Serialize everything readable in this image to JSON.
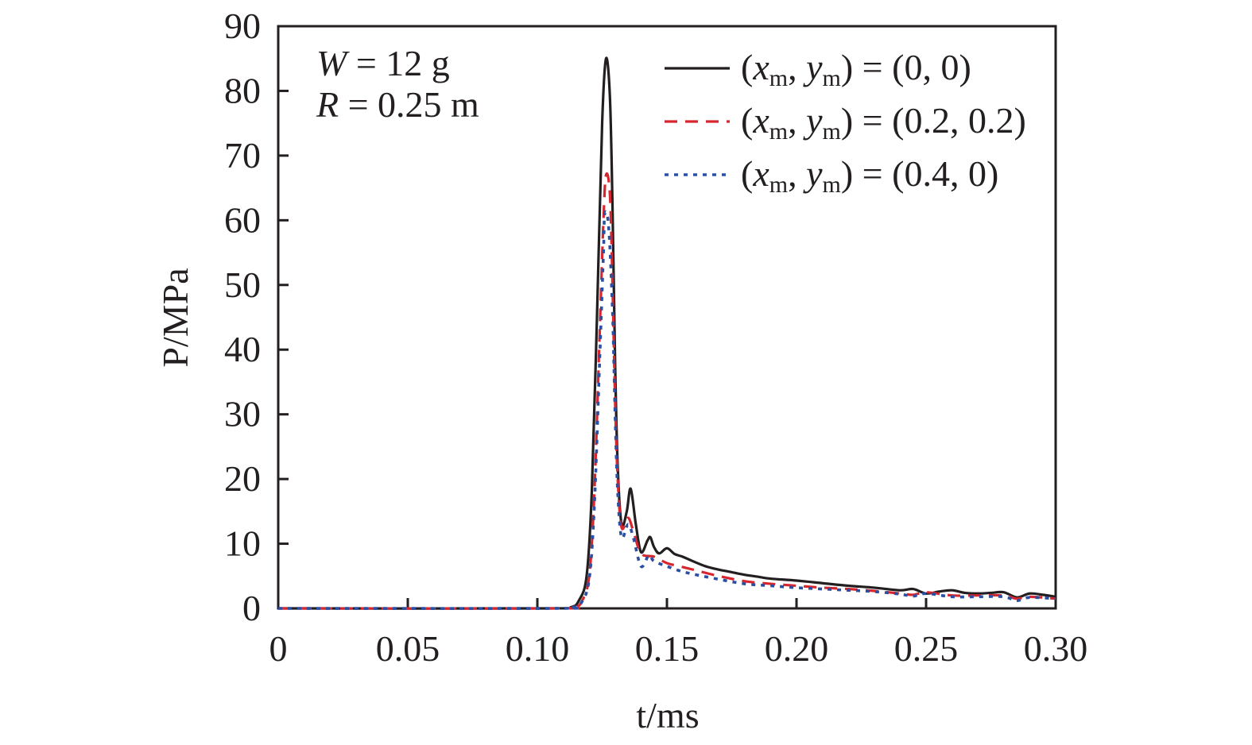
{
  "chart_data": {
    "type": "line",
    "title": "",
    "xlabel": "t/ms",
    "ylabel": "P/MPa",
    "xlim": [
      0,
      0.3
    ],
    "ylim": [
      0,
      90
    ],
    "xticks": [
      "0",
      "0.05",
      "0.10",
      "0.15",
      "0.20",
      "0.25",
      "0.30"
    ],
    "xtick_values": [
      0,
      0.05,
      0.1,
      0.15,
      0.2,
      0.25,
      0.3
    ],
    "yticks": [
      "0",
      "10",
      "20",
      "30",
      "40",
      "50",
      "60",
      "70",
      "80",
      "90"
    ],
    "ytick_values": [
      0,
      10,
      20,
      30,
      40,
      50,
      60,
      70,
      80,
      90
    ],
    "grid": false,
    "legend_placement": "top-right",
    "annotations": [
      "W = 12 g",
      "R = 0.25 m"
    ],
    "series": [
      {
        "name": "(xm, ym) = (0, 0)",
        "color": "#231f20",
        "style": "solid",
        "x": [
          0,
          0.105,
          0.113,
          0.116,
          0.119,
          0.121,
          0.123,
          0.125,
          0.1265,
          0.128,
          0.129,
          0.13,
          0.131,
          0.1325,
          0.1345,
          0.136,
          0.138,
          0.14,
          0.1425,
          0.1436,
          0.145,
          0.147,
          0.15,
          0.153,
          0.156,
          0.16,
          0.165,
          0.17,
          0.175,
          0.18,
          0.185,
          0.19,
          0.2,
          0.21,
          0.22,
          0.23,
          0.24,
          0.245,
          0.25,
          0.255,
          0.26,
          0.265,
          0.27,
          0.275,
          0.28,
          0.285,
          0.29,
          0.295,
          0.3
        ],
        "y": [
          0,
          0,
          0.2,
          1.2,
          5,
          18,
          45,
          75,
          85,
          79,
          62,
          38,
          22,
          13,
          15,
          18.5,
          13,
          8.7,
          10.5,
          11,
          9.5,
          8.5,
          9.3,
          8.4,
          8.0,
          7.3,
          6.5,
          6.0,
          5.6,
          5.2,
          4.9,
          4.6,
          4.3,
          3.9,
          3.5,
          3.2,
          2.8,
          3.0,
          2.3,
          2.6,
          2.8,
          2.4,
          2.3,
          2.4,
          2.5,
          1.7,
          2.3,
          2.1,
          1.8
        ]
      },
      {
        "name": "(xm, ym) = (0.2, 0.2)",
        "color": "#d7262e",
        "style": "dashed",
        "x": [
          0,
          0.105,
          0.114,
          0.117,
          0.12,
          0.122,
          0.124,
          0.1255,
          0.1265,
          0.128,
          0.129,
          0.13,
          0.131,
          0.1325,
          0.135,
          0.137,
          0.14,
          0.145,
          0.15,
          0.155,
          0.16,
          0.17,
          0.18,
          0.19,
          0.2,
          0.21,
          0.22,
          0.23,
          0.24,
          0.245,
          0.25,
          0.26,
          0.27,
          0.28,
          0.285,
          0.29,
          0.3
        ],
        "y": [
          0,
          0,
          0.2,
          1.0,
          5,
          18,
          42,
          60,
          67,
          64,
          50,
          32,
          20,
          12.5,
          14,
          12,
          8.5,
          8.0,
          7.0,
          6.5,
          6.0,
          5.0,
          4.2,
          3.8,
          3.5,
          3.2,
          3.0,
          2.7,
          2.3,
          2.1,
          2.5,
          2.0,
          2.0,
          2.0,
          1.5,
          1.8,
          1.5
        ]
      },
      {
        "name": "(xm, ym) = (0.4, 0)",
        "color": "#2b4fa2",
        "style": "dotted",
        "x": [
          0,
          0.105,
          0.114,
          0.117,
          0.12,
          0.122,
          0.124,
          0.1255,
          0.126,
          0.1275,
          0.129,
          0.13,
          0.131,
          0.1325,
          0.135,
          0.137,
          0.14,
          0.143,
          0.145,
          0.15,
          0.155,
          0.16,
          0.17,
          0.18,
          0.19,
          0.2,
          0.21,
          0.22,
          0.23,
          0.24,
          0.245,
          0.25,
          0.26,
          0.27,
          0.28,
          0.285,
          0.29,
          0.3
        ],
        "y": [
          0,
          0,
          0.2,
          0.9,
          4.5,
          16,
          38,
          55,
          61,
          59,
          46,
          30,
          18,
          11,
          13,
          11,
          6.5,
          8.2,
          7.3,
          6.5,
          5.8,
          5.3,
          4.5,
          3.8,
          3.5,
          3.2,
          3.0,
          2.8,
          2.6,
          2.2,
          1.9,
          2.3,
          1.8,
          1.8,
          1.8,
          1.2,
          1.7,
          1.5
        ]
      }
    ]
  }
}
